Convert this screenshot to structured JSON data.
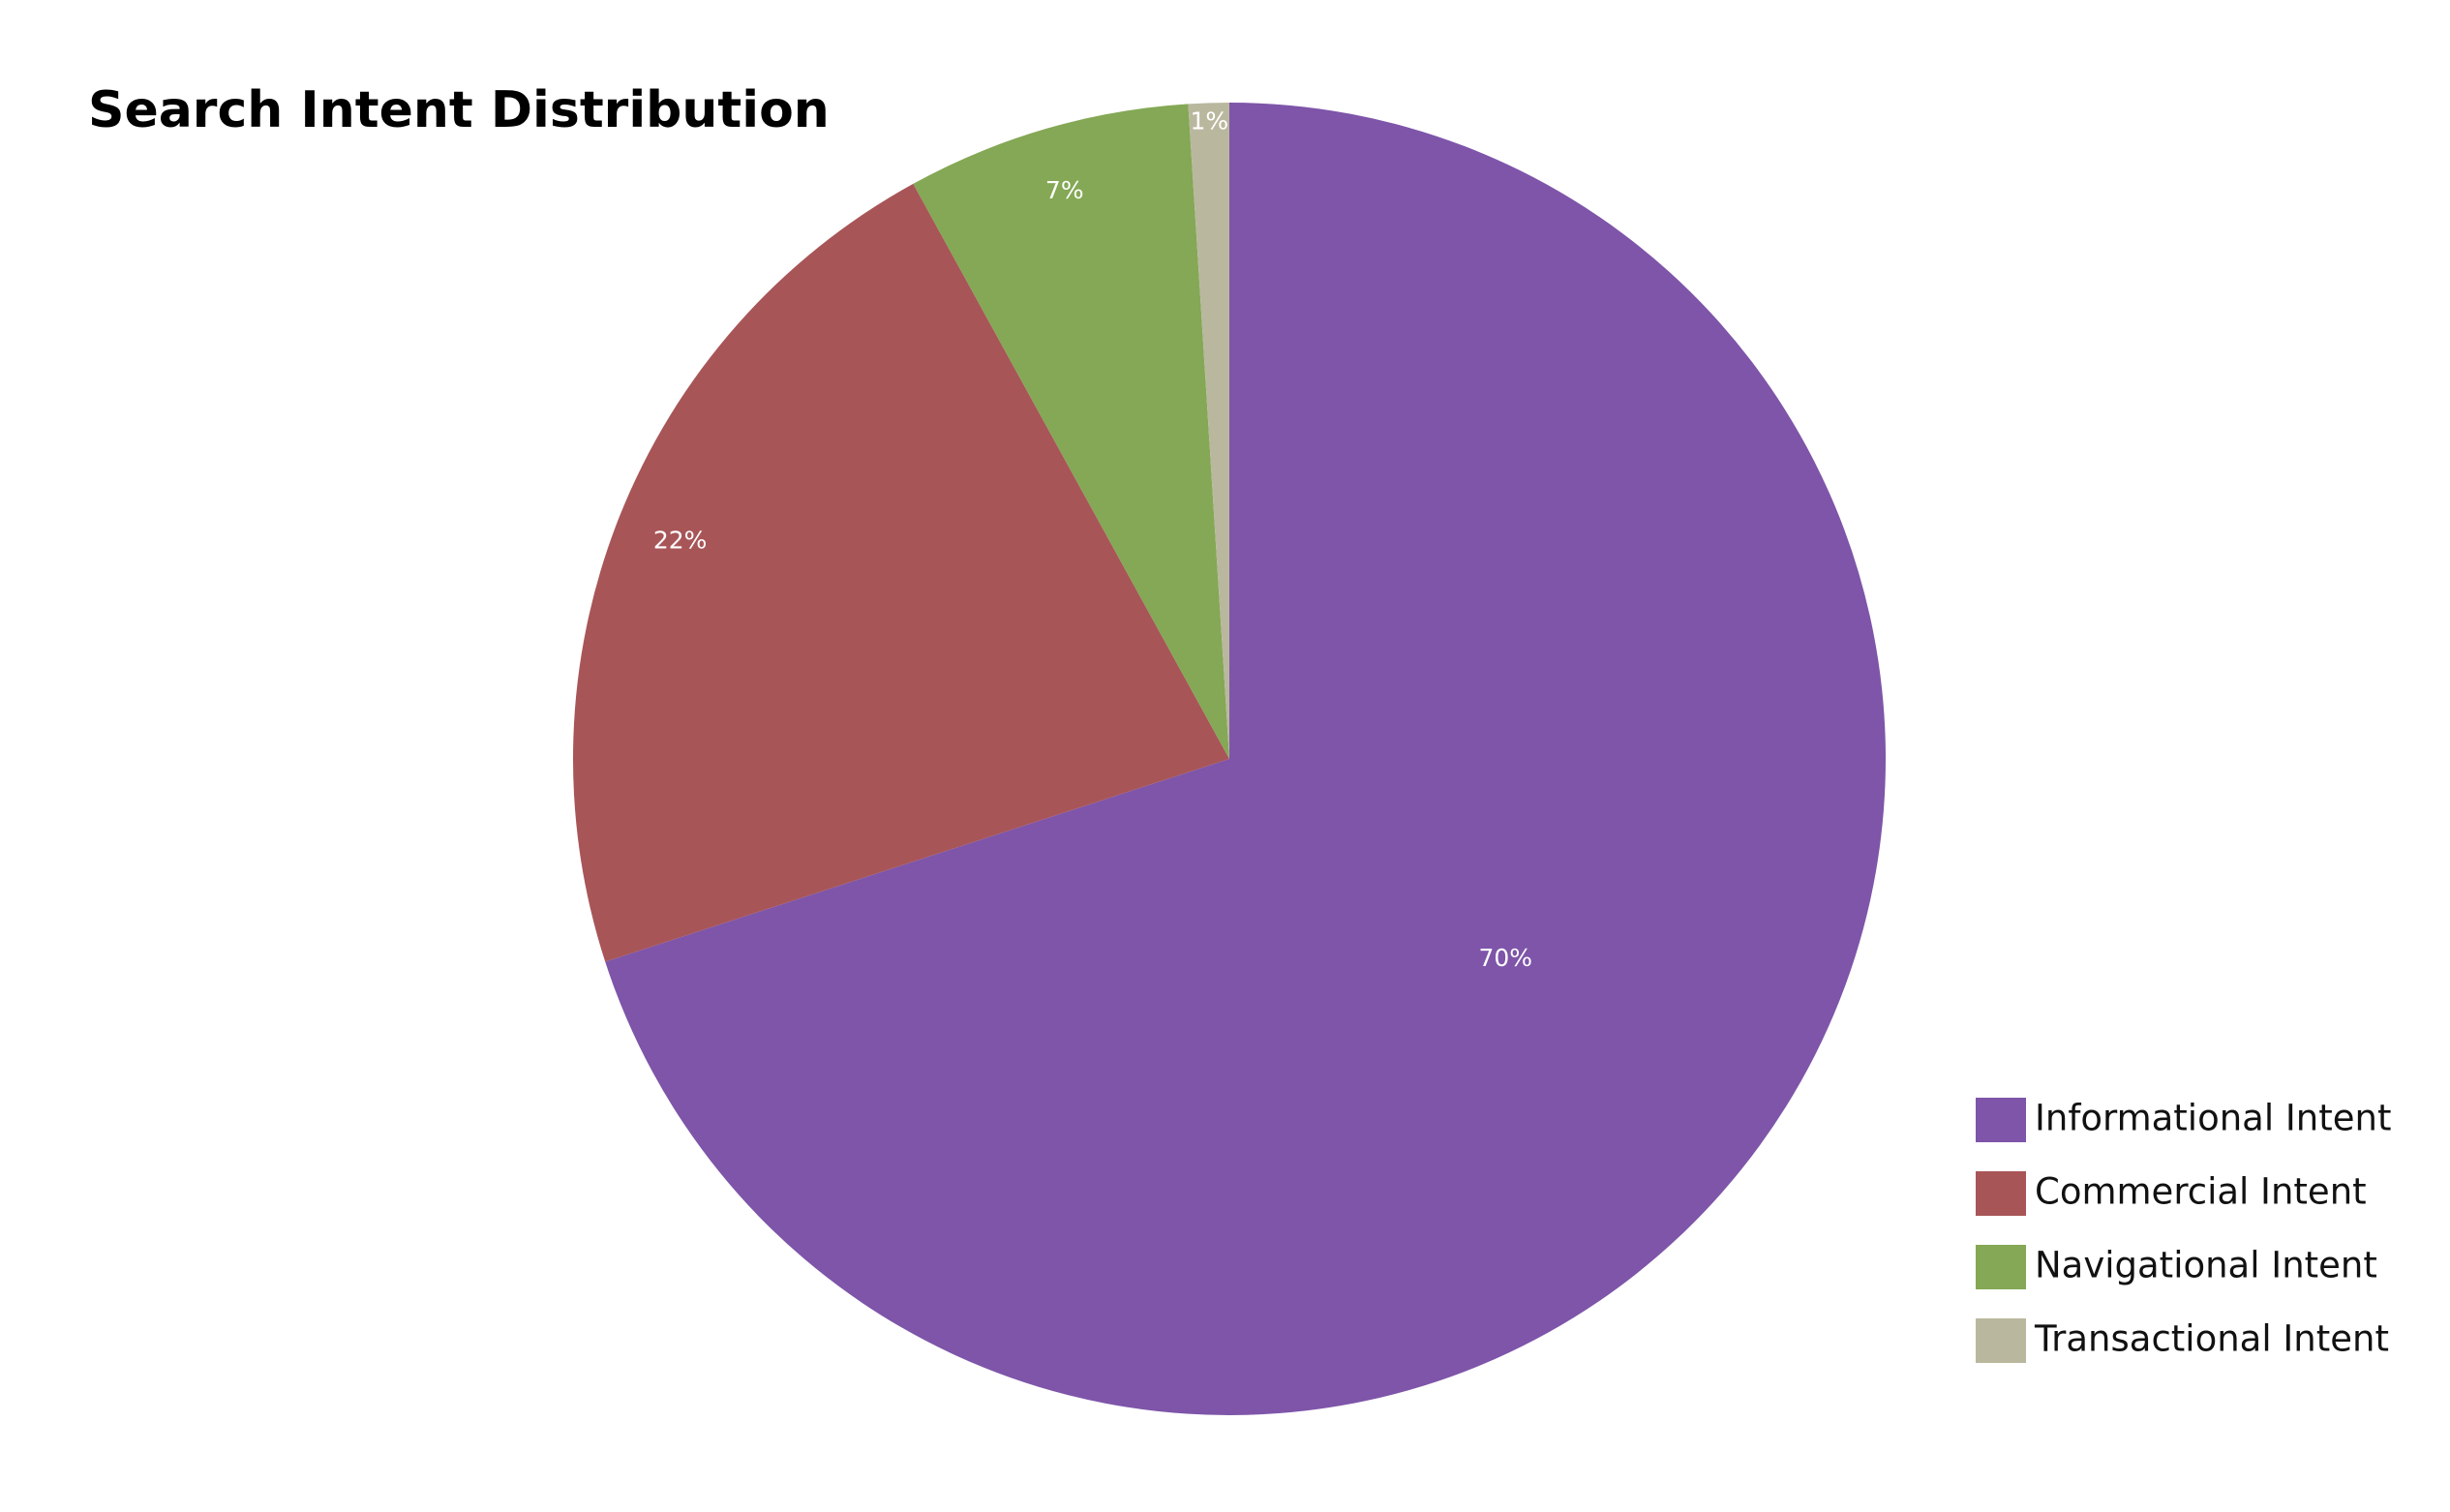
{
  "chart_data": {
    "type": "pie",
    "title": "Search Intent Distribution",
    "categories": [
      "Informational Intent",
      "Commercial Intent",
      "Navigational Intent",
      "Transactional Intent"
    ],
    "values": [
      70,
      22,
      7,
      1
    ],
    "value_labels": [
      "70%",
      "22%",
      "7%",
      "1%"
    ],
    "colors": [
      "#7e55a9",
      "#a85558",
      "#84a855",
      "#b9b89e"
    ],
    "legend": "bottom-right"
  }
}
